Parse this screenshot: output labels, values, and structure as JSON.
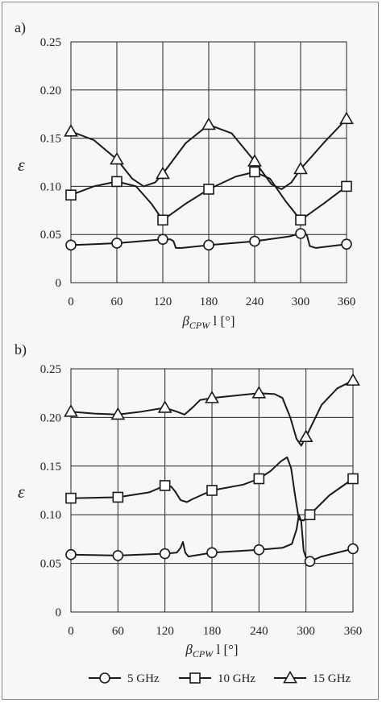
{
  "chart_data": [
    {
      "panel_label": "a)",
      "type": "line",
      "xlabel_base": "β",
      "xlabel_sub": "CPW",
      "xlabel_rest": " l [°]",
      "ylabel": "ε",
      "x_ticks": [
        0,
        60,
        120,
        180,
        240,
        300,
        360
      ],
      "y_ticks": [
        "0",
        "0.05",
        "0.10",
        "0.15",
        "0.20",
        "0.25"
      ],
      "xlim": [
        0,
        360
      ],
      "ylim": [
        0,
        0.25
      ],
      "grid": true,
      "series": [
        {
          "name": "5 GHz",
          "marker": "circle",
          "markers": [
            [
              0,
              0.039
            ],
            [
              60,
              0.041
            ],
            [
              120,
              0.045
            ],
            [
              180,
              0.039
            ],
            [
              240,
              0.043
            ],
            [
              300,
              0.051
            ],
            [
              360,
              0.04
            ]
          ],
          "curve": [
            [
              0,
              0.039
            ],
            [
              30,
              0.04
            ],
            [
              60,
              0.041
            ],
            [
              90,
              0.043
            ],
            [
              120,
              0.045
            ],
            [
              130,
              0.045
            ],
            [
              134,
              0.043
            ],
            [
              137,
              0.036
            ],
            [
              145,
              0.036
            ],
            [
              180,
              0.039
            ],
            [
              240,
              0.043
            ],
            [
              285,
              0.048
            ],
            [
              300,
              0.051
            ],
            [
              308,
              0.05
            ],
            [
              312,
              0.038
            ],
            [
              320,
              0.036
            ],
            [
              360,
              0.04
            ]
          ]
        },
        {
          "name": "10 GHz",
          "marker": "square",
          "markers": [
            [
              0,
              0.091
            ],
            [
              60,
              0.105
            ],
            [
              120,
              0.065
            ],
            [
              180,
              0.097
            ],
            [
              240,
              0.115
            ],
            [
              300,
              0.065
            ],
            [
              360,
              0.1
            ]
          ],
          "curve": [
            [
              0,
              0.091
            ],
            [
              30,
              0.1
            ],
            [
              60,
              0.105
            ],
            [
              85,
              0.1
            ],
            [
              105,
              0.082
            ],
            [
              120,
              0.065
            ],
            [
              150,
              0.082
            ],
            [
              180,
              0.097
            ],
            [
              215,
              0.11
            ],
            [
              240,
              0.115
            ],
            [
              260,
              0.108
            ],
            [
              280,
              0.085
            ],
            [
              300,
              0.065
            ],
            [
              330,
              0.082
            ],
            [
              360,
              0.1
            ]
          ]
        },
        {
          "name": "15 GHz",
          "marker": "triangle",
          "markers": [
            [
              0,
              0.157
            ],
            [
              60,
              0.128
            ],
            [
              120,
              0.113
            ],
            [
              180,
              0.164
            ],
            [
              240,
              0.126
            ],
            [
              300,
              0.118
            ],
            [
              360,
              0.17
            ]
          ],
          "curve": [
            [
              0,
              0.157
            ],
            [
              30,
              0.148
            ],
            [
              60,
              0.128
            ],
            [
              80,
              0.108
            ],
            [
              95,
              0.1
            ],
            [
              110,
              0.104
            ],
            [
              120,
              0.113
            ],
            [
              150,
              0.145
            ],
            [
              180,
              0.164
            ],
            [
              210,
              0.155
            ],
            [
              240,
              0.126
            ],
            [
              262,
              0.102
            ],
            [
              275,
              0.097
            ],
            [
              288,
              0.104
            ],
            [
              300,
              0.118
            ],
            [
              330,
              0.145
            ],
            [
              360,
              0.17
            ]
          ]
        }
      ]
    },
    {
      "panel_label": "b)",
      "type": "line",
      "xlabel_base": "β",
      "xlabel_sub": "CPW",
      "xlabel_rest": " l [°]",
      "ylabel": "ε",
      "x_ticks": [
        0,
        60,
        120,
        180,
        240,
        300,
        360
      ],
      "y_ticks": [
        "0",
        "0.05",
        "0.10",
        "0.15",
        "0.20",
        "0.25"
      ],
      "xlim": [
        0,
        360
      ],
      "ylim": [
        0,
        0.25
      ],
      "grid": true,
      "series": [
        {
          "name": "5 GHz",
          "marker": "circle",
          "markers": [
            [
              0,
              0.059
            ],
            [
              60,
              0.058
            ],
            [
              120,
              0.06
            ],
            [
              180,
              0.061
            ],
            [
              240,
              0.064
            ],
            [
              305,
              0.052
            ],
            [
              360,
              0.065
            ]
          ],
          "curve": [
            [
              0,
              0.059
            ],
            [
              60,
              0.058
            ],
            [
              120,
              0.06
            ],
            [
              135,
              0.061
            ],
            [
              140,
              0.066
            ],
            [
              143,
              0.072
            ],
            [
              146,
              0.061
            ],
            [
              150,
              0.057
            ],
            [
              180,
              0.061
            ],
            [
              240,
              0.064
            ],
            [
              270,
              0.066
            ],
            [
              282,
              0.07
            ],
            [
              288,
              0.085
            ],
            [
              291,
              0.1
            ],
            [
              294,
              0.093
            ],
            [
              297,
              0.063
            ],
            [
              300,
              0.056
            ],
            [
              305,
              0.052
            ],
            [
              320,
              0.057
            ],
            [
              360,
              0.065
            ]
          ]
        },
        {
          "name": "10 GHz",
          "marker": "square",
          "markers": [
            [
              0,
              0.117
            ],
            [
              60,
              0.118
            ],
            [
              120,
              0.13
            ],
            [
              180,
              0.125
            ],
            [
              240,
              0.137
            ],
            [
              305,
              0.1
            ],
            [
              360,
              0.137
            ]
          ],
          "curve": [
            [
              0,
              0.117
            ],
            [
              60,
              0.118
            ],
            [
              100,
              0.123
            ],
            [
              120,
              0.13
            ],
            [
              128,
              0.129
            ],
            [
              133,
              0.124
            ],
            [
              140,
              0.115
            ],
            [
              148,
              0.113
            ],
            [
              155,
              0.116
            ],
            [
              180,
              0.125
            ],
            [
              220,
              0.131
            ],
            [
              240,
              0.137
            ],
            [
              255,
              0.145
            ],
            [
              268,
              0.155
            ],
            [
              276,
              0.159
            ],
            [
              281,
              0.148
            ],
            [
              286,
              0.12
            ],
            [
              291,
              0.095
            ],
            [
              297,
              0.094
            ],
            [
              305,
              0.1
            ],
            [
              330,
              0.12
            ],
            [
              360,
              0.137
            ]
          ]
        },
        {
          "name": "15 GHz",
          "marker": "triangle",
          "markers": [
            [
              0,
              0.206
            ],
            [
              60,
              0.203
            ],
            [
              120,
              0.21
            ],
            [
              180,
              0.22
            ],
            [
              240,
              0.225
            ],
            [
              300,
              0.18
            ],
            [
              360,
              0.238
            ]
          ],
          "curve": [
            [
              0,
              0.206
            ],
            [
              30,
              0.204
            ],
            [
              60,
              0.203
            ],
            [
              90,
              0.206
            ],
            [
              120,
              0.21
            ],
            [
              135,
              0.206
            ],
            [
              145,
              0.203
            ],
            [
              155,
              0.21
            ],
            [
              165,
              0.218
            ],
            [
              180,
              0.22
            ],
            [
              240,
              0.225
            ],
            [
              260,
              0.224
            ],
            [
              270,
              0.22
            ],
            [
              280,
              0.2
            ],
            [
              288,
              0.178
            ],
            [
              294,
              0.171
            ],
            [
              300,
              0.18
            ],
            [
              320,
              0.213
            ],
            [
              340,
              0.23
            ],
            [
              360,
              0.238
            ]
          ]
        }
      ]
    }
  ],
  "legend": [
    {
      "label": "5 GHz",
      "marker": "circle"
    },
    {
      "label": "10 GHz",
      "marker": "square"
    },
    {
      "label": "15 GHz",
      "marker": "triangle"
    }
  ]
}
